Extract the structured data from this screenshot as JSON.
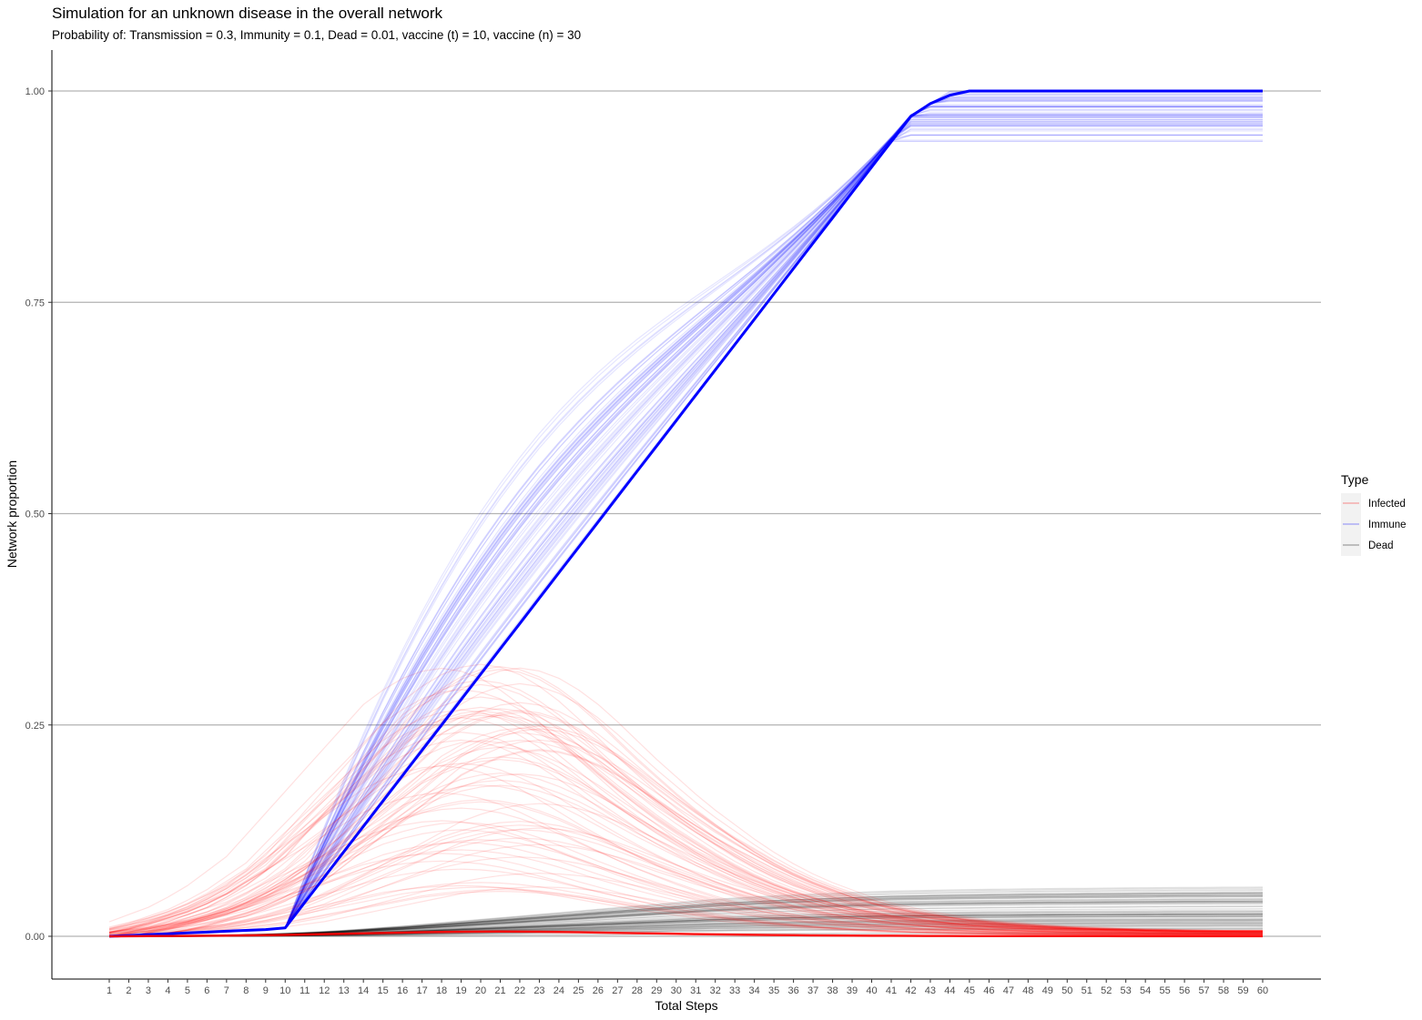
{
  "chart_data": {
    "type": "line",
    "title": "Simulation for an unknown disease in the overall network",
    "subtitle": "Probability of: Transmission = 0.3, Immunity = 0.1, Dead = 0.01, vaccine (t) = 10, vaccine (n) = 30",
    "xlabel": "Total Steps",
    "ylabel": "Network proportion",
    "x": [
      1,
      2,
      3,
      4,
      5,
      6,
      7,
      8,
      9,
      10,
      11,
      12,
      13,
      14,
      15,
      16,
      17,
      18,
      19,
      20,
      21,
      22,
      23,
      24,
      25,
      26,
      27,
      28,
      29,
      30,
      31,
      32,
      33,
      34,
      35,
      36,
      37,
      38,
      39,
      40,
      41,
      42,
      43,
      44,
      45,
      46,
      47,
      48,
      49,
      50,
      51,
      52,
      53,
      54,
      55,
      56,
      57,
      58,
      59,
      60
    ],
    "xlim": [
      1,
      60
    ],
    "ylim": [
      -0.05,
      1.05
    ],
    "y_ticks": [
      0.0,
      0.25,
      0.5,
      0.75,
      1.0
    ],
    "y_tick_labels": [
      "0.00",
      "0.25",
      "0.50",
      "0.75",
      "1.00"
    ],
    "grid": "horizontal major",
    "legend": {
      "title": "Type",
      "position": "right"
    },
    "series": [
      {
        "name": "Infected",
        "color": "#ff0000",
        "runs": "many overlaid simulation runs",
        "representative_values": [
          0,
          0.003,
          0.006,
          0.01,
          0.015,
          0.02,
          0.027,
          0.035,
          0.045,
          0.055,
          0.07,
          0.085,
          0.1,
          0.115,
          0.13,
          0.145,
          0.16,
          0.17,
          0.178,
          0.183,
          0.185,
          0.183,
          0.178,
          0.17,
          0.16,
          0.148,
          0.135,
          0.122,
          0.11,
          0.098,
          0.087,
          0.077,
          0.067,
          0.058,
          0.05,
          0.043,
          0.037,
          0.032,
          0.027,
          0.023,
          0.02,
          0.017,
          0.015,
          0.013,
          0.011,
          0.01,
          0.009,
          0.008,
          0.007,
          0.0065,
          0.006,
          0.0055,
          0.005,
          0.005,
          0.0045,
          0.0045,
          0.004,
          0.004,
          0.004,
          0.004
        ]
      },
      {
        "name": "Immune",
        "color": "#0000ff",
        "runs": "many overlaid simulation runs",
        "representative_values": [
          0,
          0.001,
          0.002,
          0.003,
          0.004,
          0.005,
          0.006,
          0.007,
          0.008,
          0.01,
          0.04,
          0.07,
          0.1,
          0.13,
          0.16,
          0.19,
          0.22,
          0.25,
          0.28,
          0.31,
          0.34,
          0.37,
          0.4,
          0.43,
          0.46,
          0.49,
          0.52,
          0.55,
          0.58,
          0.61,
          0.64,
          0.67,
          0.7,
          0.73,
          0.76,
          0.79,
          0.82,
          0.85,
          0.88,
          0.91,
          0.94,
          0.97,
          0.985,
          0.995,
          1.0,
          1.0,
          1.0,
          1.0,
          1.0,
          1.0,
          1.0,
          1.0,
          1.0,
          1.0,
          1.0,
          1.0,
          1.0,
          1.0,
          1.0,
          1.0
        ]
      },
      {
        "name": "Dead",
        "color": "#000000",
        "runs": "many overlaid simulation runs",
        "representative_values": [
          0,
          0,
          0,
          0,
          0.0002,
          0.0004,
          0.0006,
          0.001,
          0.0013,
          0.0017,
          0.0022,
          0.0028,
          0.0035,
          0.0043,
          0.0052,
          0.006,
          0.007,
          0.008,
          0.009,
          0.01,
          0.011,
          0.012,
          0.013,
          0.014,
          0.015,
          0.016,
          0.017,
          0.018,
          0.019,
          0.02,
          0.021,
          0.022,
          0.0227,
          0.0234,
          0.024,
          0.0246,
          0.025,
          0.0255,
          0.026,
          0.0264,
          0.0268,
          0.027,
          0.0273,
          0.0275,
          0.0277,
          0.0279,
          0.028,
          0.0282,
          0.0283,
          0.0284,
          0.0285,
          0.0286,
          0.0287,
          0.0288,
          0.0289,
          0.029,
          0.029,
          0.0291,
          0.0291,
          0.0292
        ]
      }
    ]
  }
}
